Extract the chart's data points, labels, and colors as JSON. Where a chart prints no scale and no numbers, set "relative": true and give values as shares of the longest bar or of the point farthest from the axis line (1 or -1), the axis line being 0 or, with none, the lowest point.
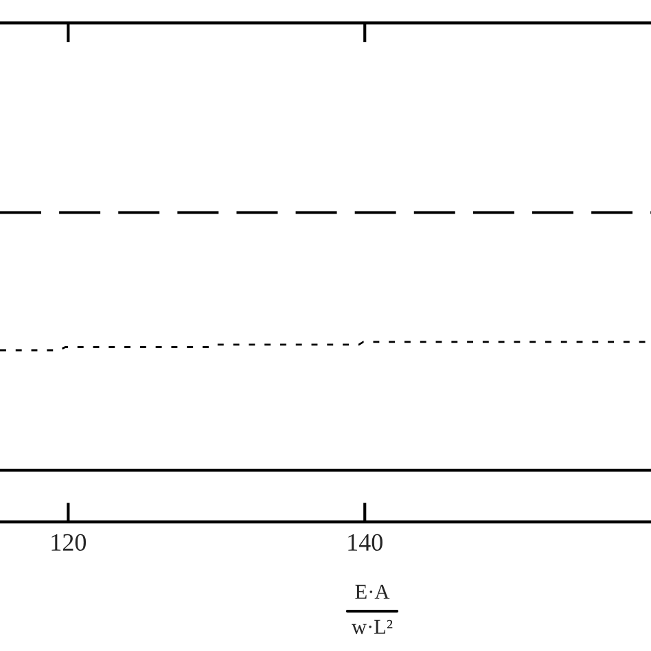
{
  "chart_data": {
    "type": "line",
    "relative": true,
    "xlabel": "E·A\nw·L²",
    "xlim": [
      115.4,
      159.3
    ],
    "xticks": [
      120,
      140
    ],
    "series": [
      {
        "color": "#000000",
        "line_style": "dashed",
        "x": [
          115.4,
          159.3
        ],
        "values": [
          1,
          1
        ]
      },
      {
        "color": "#000000",
        "line_style": "dotted",
        "x": [
          115.4,
          119.4,
          119.8,
          129.5,
          129.8,
          139.6,
          139.9,
          159.3
        ],
        "values": [
          0.555,
          0.555,
          0.565,
          0.565,
          0.573,
          0.573,
          0.582,
          0.582
        ]
      },
      {
        "color": "#000000",
        "line_style": "solid",
        "x": [
          115.4,
          159.3
        ],
        "values": [
          0.167,
          0.167
        ]
      }
    ]
  }
}
